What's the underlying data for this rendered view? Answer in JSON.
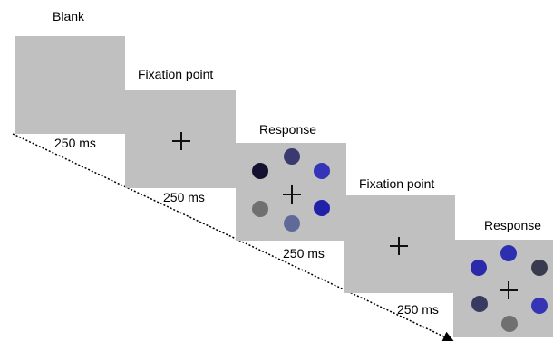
{
  "screens": [
    {
      "title": "Blank",
      "fixation": false,
      "duration": "250 ms"
    },
    {
      "title": "Fixation point",
      "fixation": true,
      "duration": "250 ms"
    },
    {
      "title": "Response",
      "fixation": true,
      "duration": "250 ms",
      "colors": [
        "#141230",
        "#3a3a70",
        "#3434b8",
        "#707070",
        "#606a98",
        "#2020a8"
      ]
    },
    {
      "title": "Fixation point",
      "fixation": true,
      "duration": "250 ms"
    },
    {
      "title": "Response",
      "fixation": true,
      "duration": "",
      "colors": [
        "#2a2aaa",
        "#2e2eb0",
        "#383a50",
        "#3a3a60",
        "#3434b4",
        "#707070"
      ]
    }
  ],
  "colors": {
    "panel": "#c0c0c0",
    "background": "#ffffff",
    "text": "#000000"
  }
}
